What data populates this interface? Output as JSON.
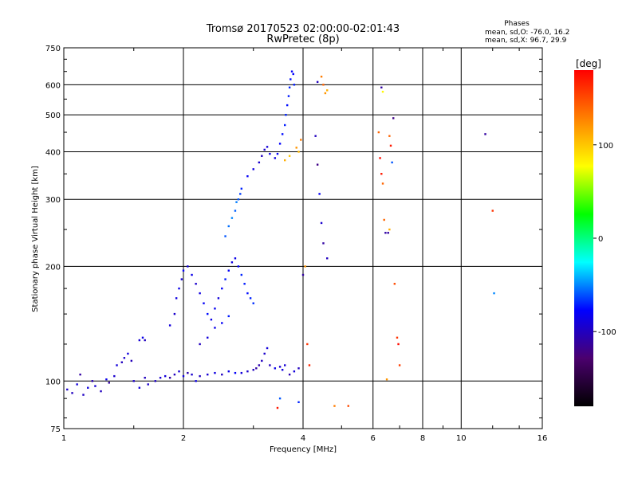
{
  "chart_data": {
    "type": "scatter",
    "title": "Tromsø 20170523 02:00:00-02:01:43",
    "subtitle": "RwPretec (8p)",
    "phases_header": "Phases",
    "phases_o": "mean, sd,O: -76.0, 16.2",
    "phases_x": "mean, sd,X:  96.7, 29.9",
    "xlabel": "Frequency [MHz]",
    "ylabel": "Stationary phase Virtual Height [km]",
    "x_scale": "log",
    "y_scale": "log",
    "xlim": [
      1,
      16
    ],
    "ylim": [
      75,
      750
    ],
    "x_ticks": [
      {
        "value": 1,
        "label": "1"
      },
      {
        "value": 2,
        "label": "2"
      },
      {
        "value": 4,
        "label": "4"
      },
      {
        "value": 6,
        "label": "6"
      },
      {
        "value": 8,
        "label": "8"
      },
      {
        "value": 10,
        "label": "10"
      },
      {
        "value": 16,
        "label": "16"
      }
    ],
    "y_ticks": [
      {
        "value": 75,
        "label": "75"
      },
      {
        "value": 100,
        "label": "100"
      },
      {
        "value": 200,
        "label": "200"
      },
      {
        "value": 300,
        "label": "300"
      },
      {
        "value": 400,
        "label": "400"
      },
      {
        "value": 500,
        "label": "500"
      },
      {
        "value": 600,
        "label": "600"
      },
      {
        "value": 750,
        "label": "750"
      }
    ],
    "grid": true,
    "colorbar": {
      "label": "[deg]",
      "range": [
        -180,
        180
      ],
      "ticks": [
        {
          "value": 100,
          "label": "100"
        },
        {
          "value": 0,
          "label": "0"
        },
        {
          "value": -100,
          "label": "-100"
        }
      ],
      "colors": [
        "#000000",
        "#4b006e",
        "#0000ff",
        "#00ffff",
        "#00ff00",
        "#ffff00",
        "#ff8000",
        "#ff0000"
      ]
    },
    "points": [
      [
        1.02,
        95,
        -95
      ],
      [
        1.05,
        93,
        -100
      ],
      [
        1.08,
        98,
        -90
      ],
      [
        1.1,
        104,
        -110
      ],
      [
        1.12,
        92,
        -98
      ],
      [
        1.15,
        96,
        -88
      ],
      [
        1.18,
        100,
        -105
      ],
      [
        1.2,
        97,
        -92
      ],
      [
        1.24,
        94,
        -100
      ],
      [
        1.28,
        101,
        -85
      ],
      [
        1.3,
        99,
        -110
      ],
      [
        1.34,
        103,
        -95
      ],
      [
        1.36,
        110,
        -90
      ],
      [
        1.4,
        112,
        -100
      ],
      [
        1.42,
        115,
        -95
      ],
      [
        1.45,
        118,
        -88
      ],
      [
        1.48,
        113,
        -102
      ],
      [
        1.5,
        100,
        -97
      ],
      [
        1.55,
        96,
        -90
      ],
      [
        1.6,
        102,
        -100
      ],
      [
        1.63,
        98,
        -95
      ],
      [
        1.55,
        128,
        -92
      ],
      [
        1.58,
        130,
        -85
      ],
      [
        1.6,
        128,
        -100
      ],
      [
        1.7,
        100,
        -98
      ],
      [
        1.75,
        102,
        -94
      ],
      [
        1.8,
        103,
        -90
      ],
      [
        1.85,
        102,
        -110
      ],
      [
        1.9,
        104,
        -100
      ],
      [
        1.95,
        106,
        -92
      ],
      [
        2.0,
        103,
        -88
      ],
      [
        2.05,
        105,
        -105
      ],
      [
        2.1,
        104,
        -95
      ],
      [
        2.15,
        100,
        -86
      ],
      [
        2.2,
        103,
        -99
      ],
      [
        2.3,
        104,
        -92
      ],
      [
        2.4,
        105,
        -88
      ],
      [
        2.5,
        104,
        -100
      ],
      [
        2.6,
        106,
        -85
      ],
      [
        2.7,
        105,
        -80
      ],
      [
        2.8,
        105,
        -90
      ],
      [
        2.9,
        106,
        -95
      ],
      [
        3.0,
        107,
        -100
      ],
      [
        3.05,
        108,
        -110
      ],
      [
        3.1,
        110,
        -105
      ],
      [
        3.15,
        113,
        -100
      ],
      [
        3.2,
        118,
        -95
      ],
      [
        3.25,
        122,
        -90
      ],
      [
        3.3,
        110,
        -100
      ],
      [
        3.4,
        108,
        -85
      ],
      [
        3.5,
        109,
        -95
      ],
      [
        3.55,
        107,
        -88
      ],
      [
        3.6,
        110,
        -92
      ],
      [
        3.7,
        104,
        -105
      ],
      [
        3.8,
        106,
        -90
      ],
      [
        3.9,
        108,
        -100
      ],
      [
        1.85,
        140,
        -90
      ],
      [
        1.9,
        150,
        -95
      ],
      [
        1.92,
        165,
        -88
      ],
      [
        1.95,
        175,
        -85
      ],
      [
        1.98,
        185,
        -92
      ],
      [
        2.0,
        195,
        -80
      ],
      [
        2.05,
        200,
        -90
      ],
      [
        2.1,
        190,
        -85
      ],
      [
        2.15,
        180,
        -95
      ],
      [
        2.2,
        170,
        -88
      ],
      [
        2.25,
        160,
        -80
      ],
      [
        2.3,
        150,
        -75
      ],
      [
        2.35,
        145,
        -85
      ],
      [
        2.4,
        155,
        -82
      ],
      [
        2.45,
        165,
        -90
      ],
      [
        2.5,
        175,
        -78
      ],
      [
        2.55,
        185,
        -72
      ],
      [
        2.6,
        195,
        -80
      ],
      [
        2.65,
        205,
        -88
      ],
      [
        2.7,
        210,
        -85
      ],
      [
        2.75,
        200,
        -78
      ],
      [
        2.8,
        190,
        -70
      ],
      [
        2.85,
        180,
        -72
      ],
      [
        2.9,
        170,
        -75
      ],
      [
        2.95,
        165,
        -70
      ],
      [
        3.0,
        160,
        -68
      ],
      [
        2.2,
        125,
        -100
      ],
      [
        2.3,
        130,
        -90
      ],
      [
        2.4,
        138,
        -85
      ],
      [
        2.5,
        142,
        -80
      ],
      [
        2.6,
        148,
        -72
      ],
      [
        2.55,
        240,
        -60
      ],
      [
        2.6,
        255,
        -55
      ],
      [
        2.65,
        268,
        -50
      ],
      [
        2.7,
        280,
        -58
      ],
      [
        2.72,
        295,
        -52
      ],
      [
        2.75,
        300,
        -60
      ],
      [
        2.78,
        310,
        -65
      ],
      [
        2.8,
        320,
        -70
      ],
      [
        2.9,
        345,
        -80
      ],
      [
        3.0,
        360,
        -88
      ],
      [
        3.1,
        375,
        -95
      ],
      [
        3.15,
        390,
        -100
      ],
      [
        3.2,
        405,
        -96
      ],
      [
        3.25,
        412,
        -90
      ],
      [
        3.3,
        395,
        -85
      ],
      [
        3.4,
        385,
        -88
      ],
      [
        3.45,
        395,
        -80
      ],
      [
        3.5,
        420,
        -78
      ],
      [
        3.55,
        445,
        -75
      ],
      [
        3.6,
        470,
        -72
      ],
      [
        3.62,
        500,
        -70
      ],
      [
        3.65,
        530,
        -75
      ],
      [
        3.68,
        560,
        -72
      ],
      [
        3.7,
        590,
        -70
      ],
      [
        3.72,
        620,
        -75
      ],
      [
        3.75,
        650,
        -80
      ],
      [
        3.78,
        640,
        -78
      ],
      [
        3.8,
        600,
        -72
      ],
      [
        3.6,
        380,
        110
      ],
      [
        3.7,
        390,
        100
      ],
      [
        3.85,
        410,
        120
      ],
      [
        3.9,
        400,
        105
      ],
      [
        3.95,
        430,
        130
      ],
      [
        4.35,
        610,
        -100
      ],
      [
        4.45,
        630,
        130
      ],
      [
        4.5,
        600,
        140
      ],
      [
        4.55,
        570,
        120
      ],
      [
        4.6,
        580,
        110
      ],
      [
        4.3,
        440,
        -100
      ],
      [
        4.35,
        370,
        -120
      ],
      [
        4.4,
        310,
        -80
      ],
      [
        4.45,
        260,
        -95
      ],
      [
        4.5,
        230,
        -110
      ],
      [
        4.6,
        210,
        -100
      ],
      [
        4.05,
        200,
        120
      ],
      [
        4.0,
        190,
        -110
      ],
      [
        4.1,
        125,
        160
      ],
      [
        4.15,
        110,
        165
      ],
      [
        3.9,
        88,
        -70
      ],
      [
        3.5,
        90,
        -60
      ],
      [
        3.45,
        85,
        170
      ],
      [
        4.8,
        86,
        130
      ],
      [
        5.2,
        86,
        150
      ],
      [
        6.3,
        590,
        -110
      ],
      [
        6.35,
        575,
        80
      ],
      [
        6.2,
        450,
        140
      ],
      [
        6.25,
        385,
        175
      ],
      [
        6.3,
        350,
        170
      ],
      [
        6.35,
        330,
        140
      ],
      [
        6.4,
        265,
        140
      ],
      [
        6.45,
        245,
        -110
      ],
      [
        6.6,
        440,
        140
      ],
      [
        6.65,
        415,
        170
      ],
      [
        6.7,
        375,
        -60
      ],
      [
        6.75,
        490,
        -120
      ],
      [
        6.55,
        245,
        -110
      ],
      [
        6.6,
        250,
        110
      ],
      [
        6.8,
        180,
        150
      ],
      [
        6.9,
        130,
        160
      ],
      [
        6.95,
        125,
        175
      ],
      [
        7.0,
        110,
        155
      ],
      [
        6.5,
        101,
        120
      ],
      [
        11.5,
        445,
        -110
      ],
      [
        12.0,
        280,
        160
      ],
      [
        12.1,
        170,
        -50
      ]
    ]
  }
}
